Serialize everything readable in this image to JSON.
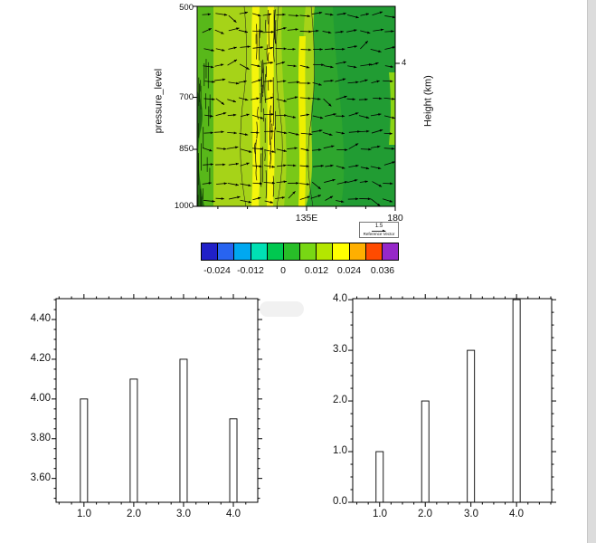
{
  "figure": {
    "background": "#ffffff",
    "scrollbar_color": "#dcdcdc"
  },
  "chart_data": [
    {
      "type": "heatmap",
      "description": "Vertical pressure-level cross-section with green/yellow filled contours and overlaid black wind vectors pointing mostly eastward",
      "left_axis": {
        "label": "pressure_level",
        "tick_labels": [
          "500",
          "700",
          "850",
          "1000"
        ]
      },
      "right_axis": {
        "label": "Height (km)",
        "tick_labels": [
          "4"
        ]
      },
      "x_axis": {
        "tick_labels": [
          "135E",
          "180"
        ]
      },
      "reference_vector": {
        "value": "1.5",
        "caption": "Reference Vector"
      },
      "colorbar": {
        "tick_labels": [
          "-0.024",
          "-0.012",
          "0",
          "0.012",
          "0.024",
          "0.036"
        ],
        "colors": [
          "#2020c8",
          "#2864f0",
          "#00a8f0",
          "#00e0b4",
          "#00c850",
          "#28be28",
          "#78d714",
          "#b4e600",
          "#ffff00",
          "#ffaf00",
          "#ff4b00",
          "#9628c8"
        ]
      },
      "vector_grid": {
        "cols": 16,
        "rows": 12
      }
    },
    {
      "type": "bar",
      "categories": [
        1.0,
        2.0,
        3.0,
        4.0
      ],
      "values": [
        4.0,
        4.1,
        4.2,
        3.9
      ],
      "x_tick_labels": [
        "1.0",
        "2.0",
        "3.0",
        "4.0"
      ],
      "y_tick_labels": [
        "3.60",
        "3.80",
        "4.00",
        "4.20",
        "4.40"
      ],
      "y_tick_values": [
        3.6,
        3.8,
        4.0,
        4.2,
        4.4
      ],
      "ylim": [
        3.48,
        4.505
      ],
      "xlim": [
        0.44,
        4.49
      ],
      "bar_fill": "#ffffff",
      "bar_stroke": "#000000"
    },
    {
      "type": "bar",
      "categories": [
        1.0,
        2.0,
        3.0,
        4.0
      ],
      "values": [
        1.0,
        2.0,
        3.0,
        4.0
      ],
      "x_tick_labels": [
        "1.0",
        "2.0",
        "3.0",
        "4.0"
      ],
      "y_tick_labels": [
        "0.0",
        "1.0",
        "2.0",
        "3.0",
        "4.0"
      ],
      "y_tick_values": [
        0,
        1,
        2,
        3,
        4
      ],
      "ylim": [
        0,
        4.02
      ],
      "xlim": [
        0.41,
        4.77
      ],
      "bar_fill": "#ffffff",
      "bar_stroke": "#000000"
    }
  ]
}
